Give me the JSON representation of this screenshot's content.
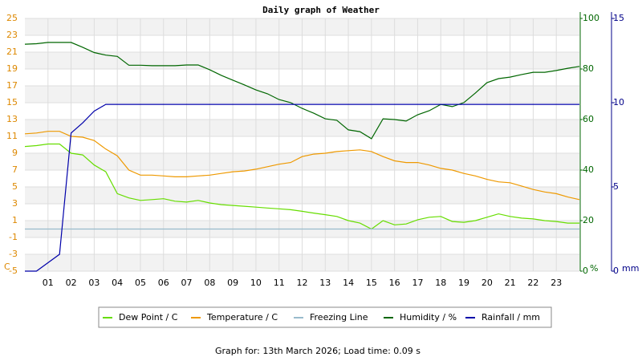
{
  "chart_data": {
    "type": "line",
    "title": "Daily graph of Weather",
    "footer": "Graph for: 13th March 2026; Load time: 0.09 s",
    "ylabel": "C",
    "y2label": "%",
    "y3label": "mm",
    "xlim": [
      0,
      24
    ],
    "xticks": [
      {
        "value": 1,
        "label": "01"
      },
      {
        "value": 2,
        "label": "02"
      },
      {
        "value": 3,
        "label": "03"
      },
      {
        "value": 4,
        "label": "04"
      },
      {
        "value": 5,
        "label": "05"
      },
      {
        "value": 6,
        "label": "06"
      },
      {
        "value": 7,
        "label": "07"
      },
      {
        "value": 8,
        "label": "08"
      },
      {
        "value": 9,
        "label": "09"
      },
      10,
      11,
      12,
      13,
      14,
      15,
      16,
      17,
      18,
      19,
      20,
      21,
      22,
      23
    ],
    "ylim": [
      -5,
      25
    ],
    "yticks": [
      -5,
      -3,
      -1,
      1,
      3,
      5,
      7,
      9,
      11,
      13,
      15,
      17,
      19,
      21,
      23,
      25
    ],
    "y2lim": [
      0,
      100
    ],
    "y2ticks": [
      0,
      20,
      40,
      60,
      80,
      100
    ],
    "y3lim": [
      0,
      15
    ],
    "y3ticks": [
      0,
      5,
      10,
      15
    ],
    "grid": true,
    "x": [
      0,
      0.5,
      1,
      1.5,
      2,
      2.5,
      3,
      3.5,
      4,
      4.5,
      5,
      5.5,
      6,
      6.5,
      7,
      7.5,
      8,
      8.5,
      9,
      9.5,
      10,
      10.5,
      11,
      11.5,
      12,
      12.5,
      13,
      13.5,
      14,
      14.5,
      15,
      15.5,
      16,
      16.5,
      17,
      17.5,
      18,
      18.5,
      19,
      19.5,
      20,
      20.5,
      21,
      21.5,
      22,
      22.5,
      23,
      23.5,
      24
    ],
    "series": [
      {
        "name": "Dew Point / C",
        "color": "#66dd00",
        "values": [
          9.8,
          9.9,
          10.1,
          10.1,
          9.0,
          8.8,
          7.6,
          6.8,
          4.2,
          3.7,
          3.4,
          3.5,
          3.6,
          3.3,
          3.2,
          3.4,
          3.1,
          2.9,
          2.8,
          2.7,
          2.6,
          2.5,
          2.4,
          2.3,
          2.1,
          1.9,
          1.7,
          1.5,
          1.0,
          0.7,
          0.0,
          1.0,
          0.5,
          0.6,
          1.1,
          1.4,
          1.5,
          0.9,
          0.8,
          1.0,
          1.4,
          1.8,
          1.5,
          1.3,
          1.2,
          1.0,
          0.9,
          0.7,
          0.7
        ]
      },
      {
        "name": "Temperature / C",
        "color": "#ee9900",
        "values": [
          11.3,
          11.4,
          11.6,
          11.6,
          11.0,
          10.9,
          10.5,
          9.5,
          8.7,
          7.0,
          6.4,
          6.4,
          6.3,
          6.2,
          6.2,
          6.3,
          6.4,
          6.6,
          6.8,
          6.9,
          7.1,
          7.4,
          7.7,
          7.9,
          8.6,
          8.9,
          9.0,
          9.2,
          9.3,
          9.4,
          9.2,
          8.6,
          8.1,
          7.9,
          7.9,
          7.6,
          7.2,
          7.0,
          6.6,
          6.3,
          5.9,
          5.6,
          5.5,
          5.1,
          4.7,
          4.4,
          4.2,
          3.8,
          3.5
        ]
      },
      {
        "name": "Freezing Line",
        "color": "#99bbcc",
        "value": 0
      },
      {
        "name": "Humidity / %",
        "color": "#006600",
        "axis": "y2",
        "values": [
          89.8,
          90,
          90.5,
          90.5,
          90.5,
          88.6,
          86.5,
          85.5,
          85,
          81.5,
          81.5,
          81.3,
          81.3,
          81.3,
          81.6,
          81.6,
          79.7,
          77.5,
          75.6,
          73.7,
          71.7,
          70.2,
          67.9,
          66.7,
          64.4,
          62.5,
          60.3,
          59.7,
          55.9,
          55.2,
          52.4,
          60.3,
          60,
          59.4,
          61.9,
          63.5,
          66,
          65.1,
          66.7,
          70.5,
          74.6,
          76.2,
          76.8,
          77.8,
          78.7,
          78.7,
          79.4,
          80.3,
          81
        ]
      },
      {
        "name": "Rainfall / mm",
        "color": "#0000aa",
        "axis": "y3",
        "values": [
          0,
          0,
          0.5,
          1.0,
          8.2,
          8.8,
          9.5,
          9.9,
          9.9,
          9.9,
          9.9,
          9.9,
          9.9,
          9.9,
          9.9,
          9.9,
          9.9,
          9.9,
          9.9,
          9.9,
          9.9,
          9.9,
          9.9,
          9.9,
          9.9,
          9.9,
          9.9,
          9.9,
          9.9,
          9.9,
          9.9,
          9.9,
          9.9,
          9.9,
          9.9,
          9.9,
          9.9,
          9.9,
          9.9,
          9.9,
          9.9,
          9.9,
          9.9,
          9.9,
          9.9,
          9.9,
          9.9,
          9.9,
          9.9
        ]
      }
    ]
  }
}
